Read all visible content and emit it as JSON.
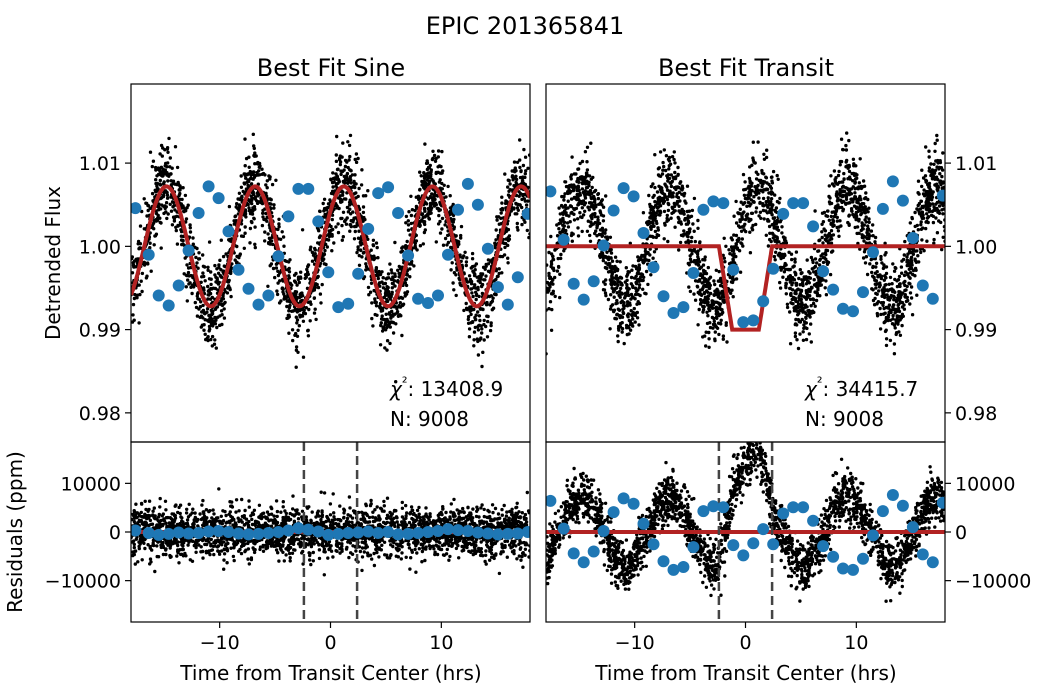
{
  "figure": {
    "title": "EPIC 201365841"
  },
  "chart_data": [
    {
      "id": "sine_flux",
      "type": "scatter",
      "title": "Best Fit Sine",
      "xlabel": "",
      "ylabel": "Detrended Flux",
      "xlim": [
        -18,
        18
      ],
      "ylim": [
        0.9765,
        1.0195
      ],
      "yticks": [
        "0.98",
        "0.99",
        "1.00",
        "1.01"
      ],
      "ytick_values": [
        0.98,
        0.99,
        1.0,
        1.01
      ],
      "yaxis_side": "left",
      "model": {
        "kind": "sine",
        "amplitude": 0.0072,
        "period": 8.0,
        "phase_zero": -0.8,
        "baseline": 1.0,
        "color": "#b22222"
      },
      "raw_points": {
        "n_points": 9008,
        "color": "#000000"
      },
      "binned_points": {
        "color": "#1f77b4",
        "x": [
          -17.6,
          -16.4,
          -15.5,
          -14.6,
          -13.7,
          -12.8,
          -11.9,
          -11.0,
          -10.1,
          -9.2,
          -8.3,
          -7.4,
          -6.5,
          -5.6,
          -4.7,
          -3.8,
          -2.9,
          -2.0,
          -1.1,
          -0.2,
          0.7,
          1.6,
          2.5,
          3.4,
          4.3,
          5.2,
          6.1,
          7.0,
          7.9,
          8.8,
          9.7,
          10.6,
          11.5,
          12.4,
          13.3,
          14.2,
          15.1,
          16.0,
          16.9,
          17.8
        ],
        "y": [
          1.0046,
          0.999,
          0.9941,
          0.9929,
          0.9953,
          0.9995,
          1.004,
          1.0072,
          1.0058,
          1.0018,
          0.9972,
          0.9949,
          0.993,
          0.9941,
          0.9988,
          1.0036,
          1.0069,
          1.0069,
          1.003,
          0.9969,
          0.9927,
          0.9931,
          0.9967,
          1.0021,
          1.0064,
          1.0071,
          1.004,
          0.9989,
          0.9937,
          0.9932,
          0.9941,
          0.999,
          1.0044,
          1.0075,
          1.005,
          0.9997,
          0.9951,
          0.993,
          0.9963,
          1.0039
        ]
      },
      "annotations": [
        {
          "label": "χ²",
          "text": ": 13408.9"
        },
        {
          "text": "N: 9008"
        }
      ]
    },
    {
      "id": "transit_flux",
      "type": "scatter",
      "title": "Best Fit Transit",
      "xlabel": "",
      "ylabel": "",
      "xlim": [
        -18,
        18
      ],
      "ylim": [
        0.9765,
        1.0195
      ],
      "yticks": [
        "0.98",
        "0.99",
        "1.00",
        "1.01"
      ],
      "ytick_values": [
        0.98,
        0.99,
        1.0,
        1.01
      ],
      "yaxis_side": "right",
      "model": {
        "kind": "transit",
        "t_ingress_start": -2.4,
        "t_ingress_end": -1.2,
        "t_egress_start": 1.2,
        "t_egress_end": 2.4,
        "depth": 0.01,
        "baseline": 1.0,
        "color": "#b22222"
      },
      "raw_points": {
        "n_points": 9008,
        "color": "#000000"
      },
      "binned_points": {
        "color": "#1f77b4",
        "x": [
          -17.6,
          -16.4,
          -15.5,
          -14.6,
          -13.7,
          -12.8,
          -11.9,
          -11.0,
          -10.1,
          -9.2,
          -8.3,
          -7.4,
          -6.5,
          -5.6,
          -4.7,
          -3.8,
          -2.9,
          -2.0,
          -1.1,
          -0.2,
          0.7,
          1.6,
          2.5,
          3.4,
          4.3,
          5.2,
          6.1,
          7.0,
          7.9,
          8.8,
          9.7,
          10.6,
          11.5,
          12.4,
          13.3,
          14.2,
          15.1,
          16.0,
          16.9,
          17.8
        ],
        "y": [
          1.0066,
          1.0008,
          0.9955,
          0.9936,
          0.9958,
          1.0001,
          1.0043,
          1.007,
          1.006,
          1.0016,
          0.9975,
          0.994,
          0.992,
          0.9927,
          0.9968,
          1.0044,
          1.0054,
          1.0052,
          0.9972,
          0.9909,
          0.9911,
          0.9934,
          0.9973,
          1.0039,
          1.0052,
          1.0052,
          1.0024,
          0.997,
          0.9948,
          0.9925,
          0.9922,
          0.9945,
          0.9993,
          1.0045,
          1.0078,
          1.0055,
          1.001,
          0.9953,
          0.9937,
          1.0061
        ]
      },
      "annotations": [
        {
          "label": "χ²",
          "text": ": 34415.7"
        },
        {
          "text": "N: 9008"
        }
      ]
    },
    {
      "id": "sine_resid",
      "type": "scatter",
      "title": "",
      "xlabel": "Time from Transit Center (hrs)",
      "ylabel": "Residuals (ppm)",
      "xlim": [
        -18,
        18
      ],
      "xticks": [
        "−10",
        "0",
        "10"
      ],
      "xtick_values": [
        -10,
        0,
        10
      ],
      "ylim": [
        -18500,
        18500
      ],
      "yticks": [
        "−10000",
        "0",
        "10000"
      ],
      "ytick_values": [
        -10000,
        0,
        10000
      ],
      "yaxis_side": "left",
      "model": {
        "kind": "zero",
        "color": "#b22222"
      },
      "vlines": [
        -2.4,
        2.4
      ],
      "raw_points": {
        "n_points": 9008,
        "color": "#000000"
      },
      "binned_points": {
        "color": "#1f77b4",
        "x": [
          -17.6,
          -16.4,
          -15.5,
          -14.6,
          -13.7,
          -12.8,
          -11.9,
          -11.0,
          -10.1,
          -9.2,
          -8.3,
          -7.4,
          -6.5,
          -5.6,
          -4.7,
          -3.8,
          -2.9,
          -2.0,
          -1.1,
          -0.2,
          0.7,
          1.6,
          2.5,
          3.4,
          4.3,
          5.2,
          6.1,
          7.0,
          7.9,
          8.8,
          9.7,
          10.6,
          11.5,
          12.4,
          13.3,
          14.2,
          15.1,
          16.0,
          16.9,
          17.8
        ],
        "y": [
          300,
          -200,
          -600,
          -400,
          -100,
          -300,
          -200,
          100,
          200,
          0,
          -300,
          -500,
          -400,
          -200,
          0,
          300,
          800,
          500,
          100,
          -600,
          -400,
          -200,
          -100,
          100,
          -200,
          0,
          -500,
          -400,
          -200,
          0,
          200,
          600,
          400,
          200,
          -100,
          -300,
          -500,
          -400,
          -300,
          0
        ]
      }
    },
    {
      "id": "transit_resid",
      "type": "scatter",
      "title": "",
      "xlabel": "Time from Transit Center (hrs)",
      "ylabel": "",
      "xlim": [
        -18,
        18
      ],
      "xticks": [
        "−10",
        "0",
        "10"
      ],
      "xtick_values": [
        -10,
        0,
        10
      ],
      "ylim": [
        -18500,
        18500
      ],
      "yticks": [
        "−10000",
        "0",
        "10000"
      ],
      "ytick_values": [
        -10000,
        0,
        10000
      ],
      "yaxis_side": "right",
      "model": {
        "kind": "zero",
        "color": "#b22222"
      },
      "vlines": [
        -2.4,
        2.4
      ],
      "raw_points": {
        "n_points": 9008,
        "color": "#000000"
      },
      "binned_points": {
        "color": "#1f77b4",
        "x": [
          -17.6,
          -16.4,
          -15.5,
          -14.6,
          -13.7,
          -12.8,
          -11.9,
          -11.0,
          -10.1,
          -9.2,
          -8.3,
          -7.4,
          -6.5,
          -5.6,
          -4.7,
          -3.8,
          -2.9,
          -2.0,
          -1.1,
          -0.2,
          0.7,
          1.6,
          2.5,
          3.4,
          4.3,
          5.2,
          6.1,
          7.0,
          7.9,
          8.8,
          9.7,
          10.6,
          11.5,
          12.4,
          13.3,
          14.2,
          15.1,
          16.0,
          16.9,
          17.8
        ],
        "y": [
          6400,
          700,
          -4400,
          -6200,
          -4000,
          200,
          4100,
          6900,
          5800,
          1700,
          -2500,
          -6000,
          -7800,
          -7200,
          -3100,
          4300,
          5300,
          5100,
          -2700,
          -4800,
          -2300,
          600,
          -2500,
          3800,
          5100,
          5100,
          2300,
          -2900,
          -5100,
          -7500,
          -7800,
          -5500,
          -700,
          4300,
          7600,
          5400,
          1000,
          -4600,
          -6200,
          6000
        ]
      }
    }
  ]
}
